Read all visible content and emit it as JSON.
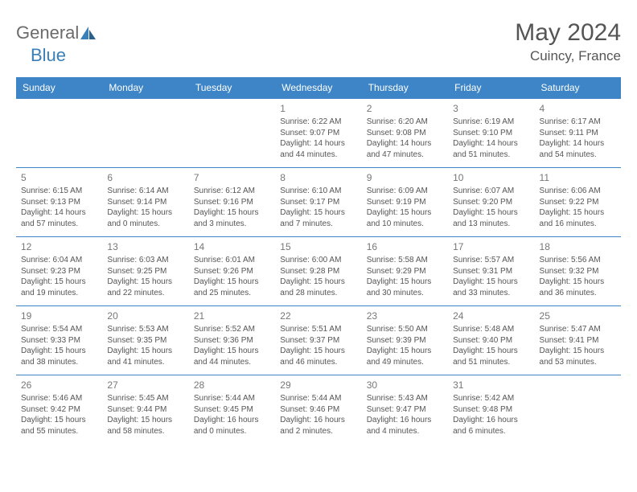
{
  "logo": {
    "part1": "General",
    "part2": "Blue"
  },
  "title": {
    "monthYear": "May 2024",
    "location": "Cuincy, France"
  },
  "dayHeaders": [
    "Sunday",
    "Monday",
    "Tuesday",
    "Wednesday",
    "Thursday",
    "Friday",
    "Saturday"
  ],
  "colors": {
    "headerBg": "#3d85c6",
    "headerText": "#ffffff",
    "cellBorder": "#3d85c6",
    "bodyText": "#555555",
    "logoGray": "#6b6b6b",
    "logoBlue": "#3a7fb8"
  },
  "weeks": [
    [
      {
        "blank": true
      },
      {
        "blank": true
      },
      {
        "blank": true
      },
      {
        "day": "1",
        "sunrise": "Sunrise: 6:22 AM",
        "sunset": "Sunset: 9:07 PM",
        "daylight": "Daylight: 14 hours and 44 minutes."
      },
      {
        "day": "2",
        "sunrise": "Sunrise: 6:20 AM",
        "sunset": "Sunset: 9:08 PM",
        "daylight": "Daylight: 14 hours and 47 minutes."
      },
      {
        "day": "3",
        "sunrise": "Sunrise: 6:19 AM",
        "sunset": "Sunset: 9:10 PM",
        "daylight": "Daylight: 14 hours and 51 minutes."
      },
      {
        "day": "4",
        "sunrise": "Sunrise: 6:17 AM",
        "sunset": "Sunset: 9:11 PM",
        "daylight": "Daylight: 14 hours and 54 minutes."
      }
    ],
    [
      {
        "day": "5",
        "sunrise": "Sunrise: 6:15 AM",
        "sunset": "Sunset: 9:13 PM",
        "daylight": "Daylight: 14 hours and 57 minutes."
      },
      {
        "day": "6",
        "sunrise": "Sunrise: 6:14 AM",
        "sunset": "Sunset: 9:14 PM",
        "daylight": "Daylight: 15 hours and 0 minutes."
      },
      {
        "day": "7",
        "sunrise": "Sunrise: 6:12 AM",
        "sunset": "Sunset: 9:16 PM",
        "daylight": "Daylight: 15 hours and 3 minutes."
      },
      {
        "day": "8",
        "sunrise": "Sunrise: 6:10 AM",
        "sunset": "Sunset: 9:17 PM",
        "daylight": "Daylight: 15 hours and 7 minutes."
      },
      {
        "day": "9",
        "sunrise": "Sunrise: 6:09 AM",
        "sunset": "Sunset: 9:19 PM",
        "daylight": "Daylight: 15 hours and 10 minutes."
      },
      {
        "day": "10",
        "sunrise": "Sunrise: 6:07 AM",
        "sunset": "Sunset: 9:20 PM",
        "daylight": "Daylight: 15 hours and 13 minutes."
      },
      {
        "day": "11",
        "sunrise": "Sunrise: 6:06 AM",
        "sunset": "Sunset: 9:22 PM",
        "daylight": "Daylight: 15 hours and 16 minutes."
      }
    ],
    [
      {
        "day": "12",
        "sunrise": "Sunrise: 6:04 AM",
        "sunset": "Sunset: 9:23 PM",
        "daylight": "Daylight: 15 hours and 19 minutes."
      },
      {
        "day": "13",
        "sunrise": "Sunrise: 6:03 AM",
        "sunset": "Sunset: 9:25 PM",
        "daylight": "Daylight: 15 hours and 22 minutes."
      },
      {
        "day": "14",
        "sunrise": "Sunrise: 6:01 AM",
        "sunset": "Sunset: 9:26 PM",
        "daylight": "Daylight: 15 hours and 25 minutes."
      },
      {
        "day": "15",
        "sunrise": "Sunrise: 6:00 AM",
        "sunset": "Sunset: 9:28 PM",
        "daylight": "Daylight: 15 hours and 28 minutes."
      },
      {
        "day": "16",
        "sunrise": "Sunrise: 5:58 AM",
        "sunset": "Sunset: 9:29 PM",
        "daylight": "Daylight: 15 hours and 30 minutes."
      },
      {
        "day": "17",
        "sunrise": "Sunrise: 5:57 AM",
        "sunset": "Sunset: 9:31 PM",
        "daylight": "Daylight: 15 hours and 33 minutes."
      },
      {
        "day": "18",
        "sunrise": "Sunrise: 5:56 AM",
        "sunset": "Sunset: 9:32 PM",
        "daylight": "Daylight: 15 hours and 36 minutes."
      }
    ],
    [
      {
        "day": "19",
        "sunrise": "Sunrise: 5:54 AM",
        "sunset": "Sunset: 9:33 PM",
        "daylight": "Daylight: 15 hours and 38 minutes."
      },
      {
        "day": "20",
        "sunrise": "Sunrise: 5:53 AM",
        "sunset": "Sunset: 9:35 PM",
        "daylight": "Daylight: 15 hours and 41 minutes."
      },
      {
        "day": "21",
        "sunrise": "Sunrise: 5:52 AM",
        "sunset": "Sunset: 9:36 PM",
        "daylight": "Daylight: 15 hours and 44 minutes."
      },
      {
        "day": "22",
        "sunrise": "Sunrise: 5:51 AM",
        "sunset": "Sunset: 9:37 PM",
        "daylight": "Daylight: 15 hours and 46 minutes."
      },
      {
        "day": "23",
        "sunrise": "Sunrise: 5:50 AM",
        "sunset": "Sunset: 9:39 PM",
        "daylight": "Daylight: 15 hours and 49 minutes."
      },
      {
        "day": "24",
        "sunrise": "Sunrise: 5:48 AM",
        "sunset": "Sunset: 9:40 PM",
        "daylight": "Daylight: 15 hours and 51 minutes."
      },
      {
        "day": "25",
        "sunrise": "Sunrise: 5:47 AM",
        "sunset": "Sunset: 9:41 PM",
        "daylight": "Daylight: 15 hours and 53 minutes."
      }
    ],
    [
      {
        "day": "26",
        "sunrise": "Sunrise: 5:46 AM",
        "sunset": "Sunset: 9:42 PM",
        "daylight": "Daylight: 15 hours and 55 minutes."
      },
      {
        "day": "27",
        "sunrise": "Sunrise: 5:45 AM",
        "sunset": "Sunset: 9:44 PM",
        "daylight": "Daylight: 15 hours and 58 minutes."
      },
      {
        "day": "28",
        "sunrise": "Sunrise: 5:44 AM",
        "sunset": "Sunset: 9:45 PM",
        "daylight": "Daylight: 16 hours and 0 minutes."
      },
      {
        "day": "29",
        "sunrise": "Sunrise: 5:44 AM",
        "sunset": "Sunset: 9:46 PM",
        "daylight": "Daylight: 16 hours and 2 minutes."
      },
      {
        "day": "30",
        "sunrise": "Sunrise: 5:43 AM",
        "sunset": "Sunset: 9:47 PM",
        "daylight": "Daylight: 16 hours and 4 minutes."
      },
      {
        "day": "31",
        "sunrise": "Sunrise: 5:42 AM",
        "sunset": "Sunset: 9:48 PM",
        "daylight": "Daylight: 16 hours and 6 minutes."
      },
      {
        "blank": true
      }
    ]
  ]
}
